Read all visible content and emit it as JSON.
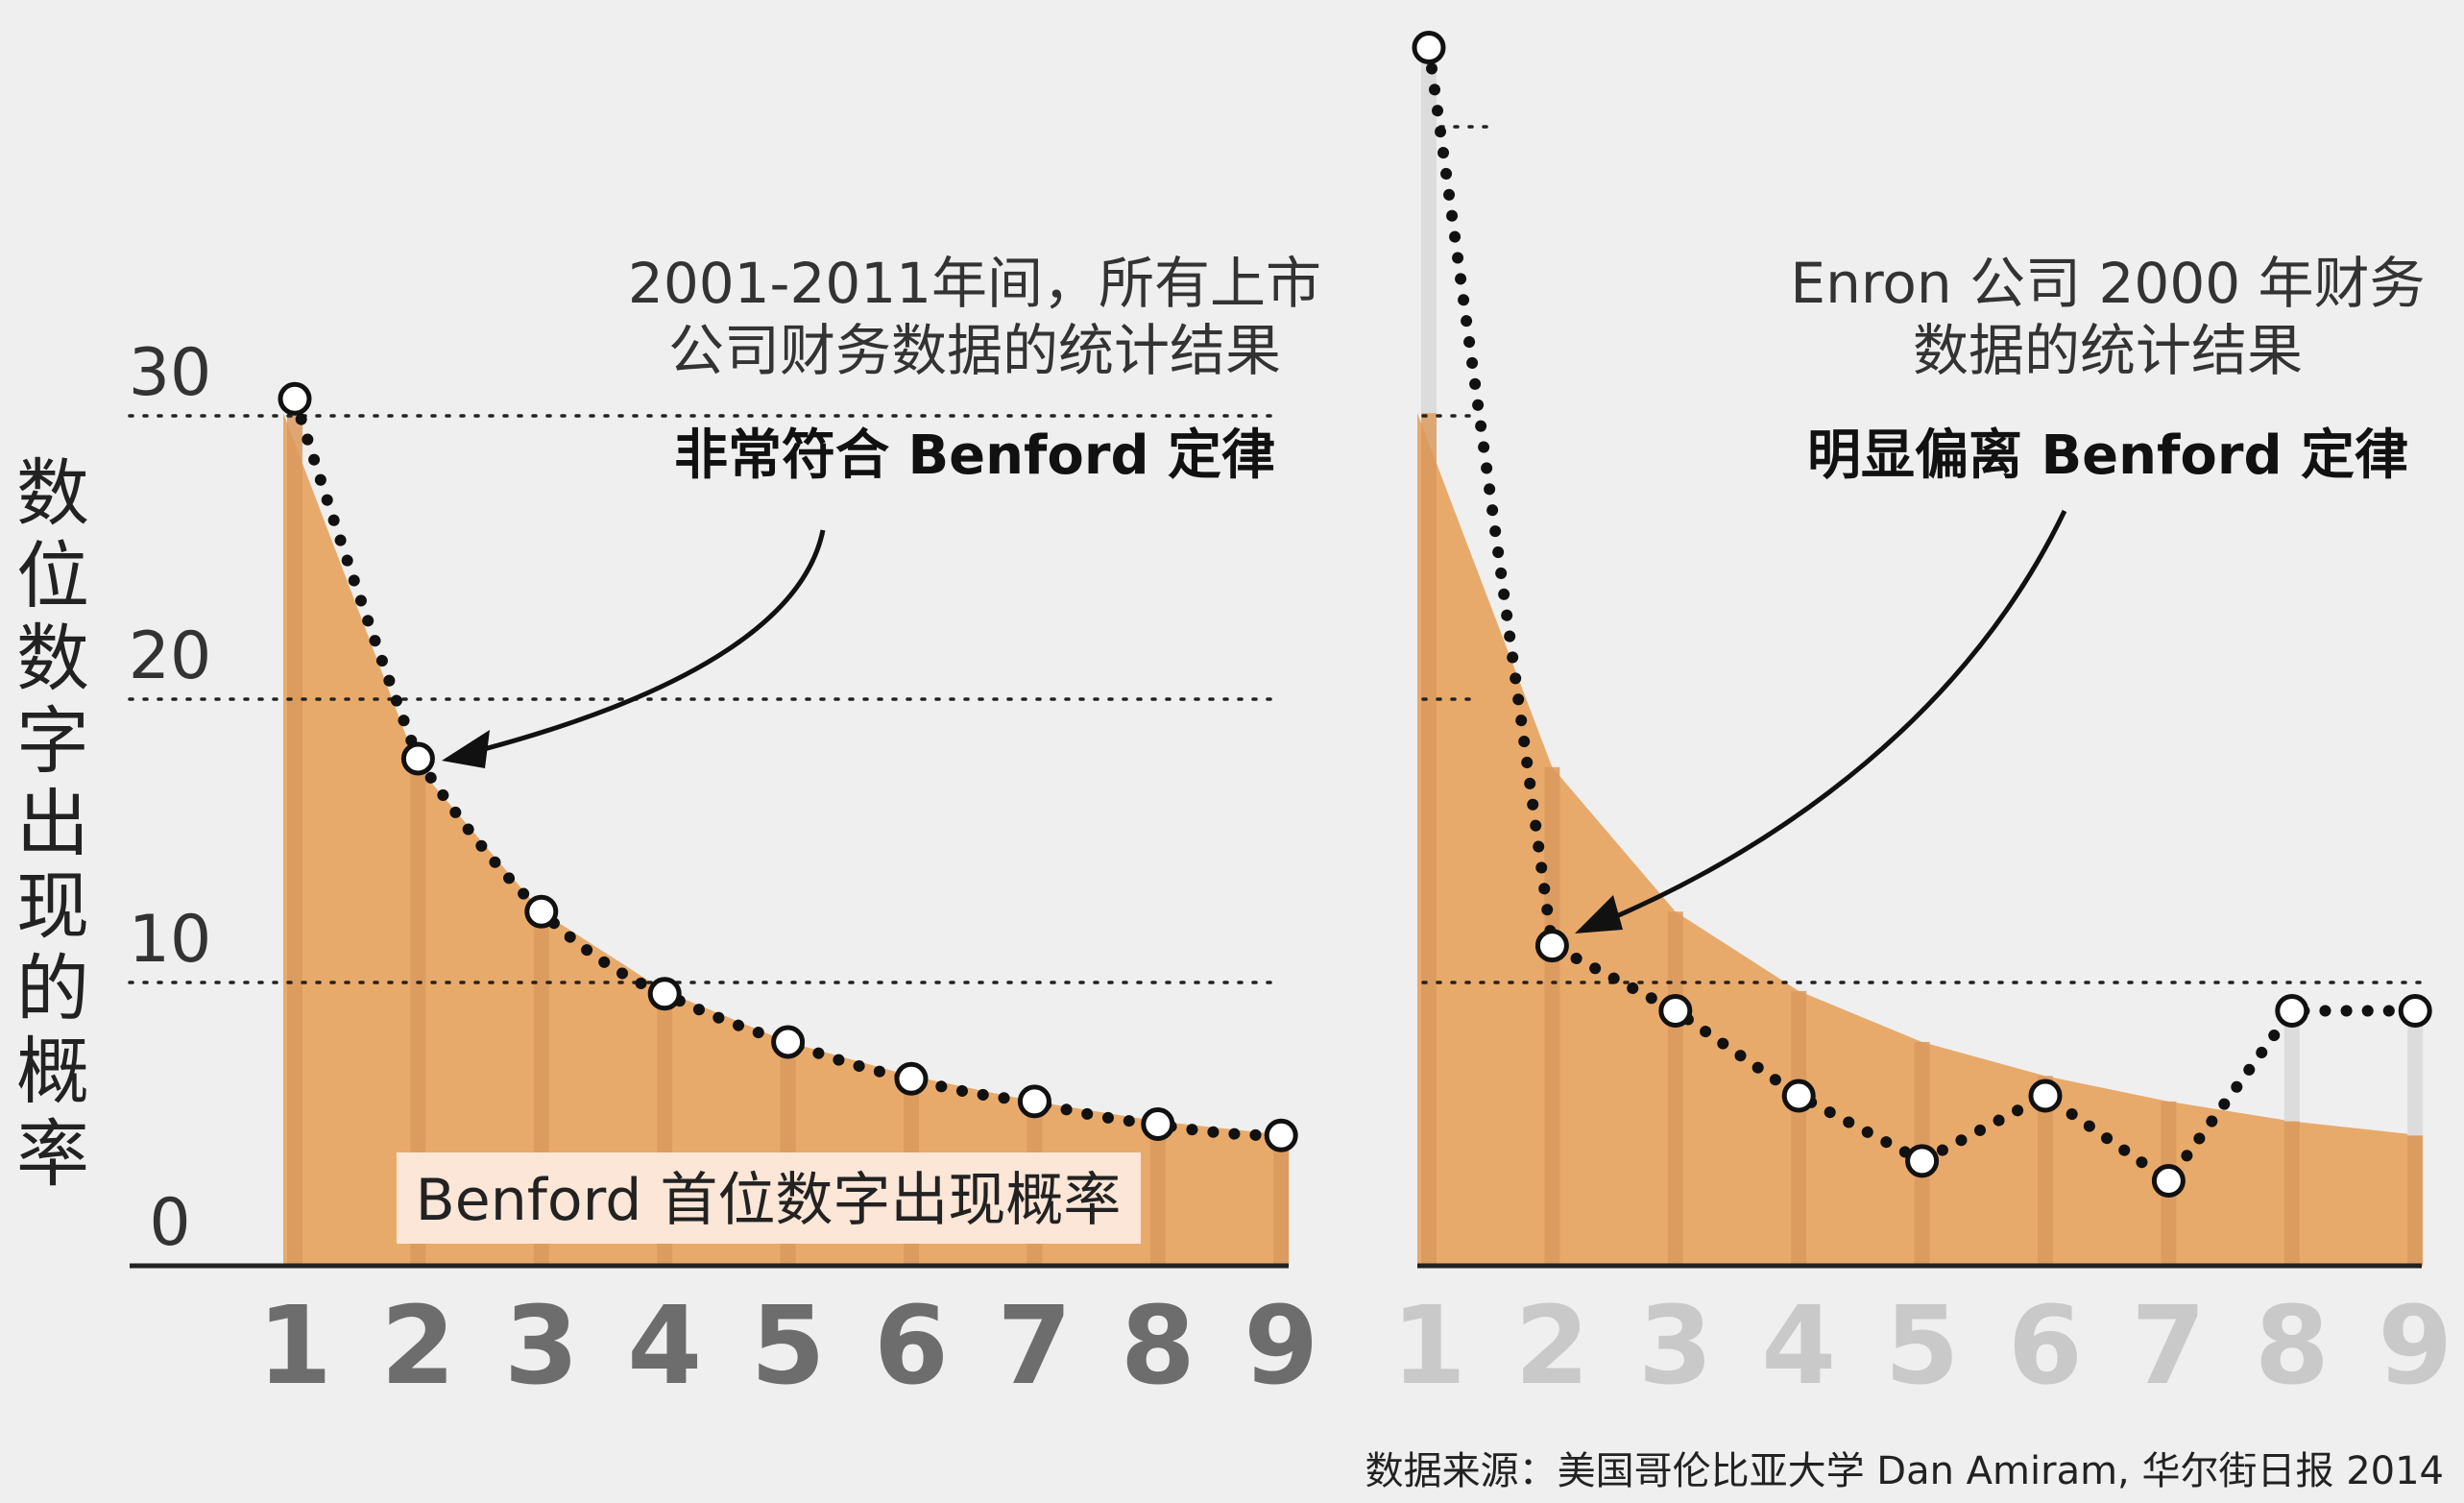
{
  "y_axis_label": "数位数字出现的概率",
  "y_ticks": [
    "30",
    "20",
    "10",
    "0"
  ],
  "legend_label": "Benford 首位数字出现概率",
  "source": "数据来源：美国哥伦比亚大学 Dan Amiram, 华尔街日报 2014",
  "colors": {
    "area": "#e8aa6b",
    "stripe": "#d99a5e",
    "dots": "#111111",
    "marker_fill": "#ffffff",
    "gridline": "#222222",
    "category_left": "#6d6d6d",
    "category_right": "#c9c9c9",
    "legend_box": "#fbe6d7"
  },
  "chart_data": [
    {
      "type": "area",
      "categories": [
        "1",
        "2",
        "3",
        "4",
        "5",
        "6",
        "7",
        "8",
        "9"
      ],
      "ylim": [
        0,
        30
      ],
      "grid": "dotted lines at 10, 20, 30",
      "series": [
        {
          "name": "Benford 首位数字出现概率",
          "values": [
            30.1,
            17.6,
            12.5,
            9.7,
            7.9,
            6.7,
            5.8,
            5.1,
            4.6
          ]
        },
        {
          "values": [
            30.6,
            17.9,
            12.5,
            9.6,
            7.9,
            6.6,
            5.8,
            5.0,
            4.6
          ]
        }
      ],
      "annotation": {
        "line1": "2001-2011年间，所有上市",
        "line2": "公司财务数据的统计结果",
        "bold": "非常符合 Benford 定律"
      }
    },
    {
      "type": "area",
      "categories": [
        "1",
        "2",
        "3",
        "4",
        "5",
        "6",
        "7",
        "8",
        "9"
      ],
      "ylim": [
        0,
        30
      ],
      "grid": "dotted lines at 10, 20, 30",
      "series": [
        {
          "name": "Benford 首位数字出现概率",
          "values": [
            30.1,
            17.6,
            12.5,
            9.7,
            7.9,
            6.7,
            5.8,
            5.1,
            4.6
          ]
        },
        {
          "values": [
            43.0,
            11.3,
            9.0,
            6.0,
            3.7,
            6.0,
            3.0,
            9.0,
            9.0
          ]
        }
      ],
      "annotation": {
        "line1": "Enron 公司 2000 年财务",
        "line2": "数据的统计结果",
        "bold": "明显偏离 Benford 定律"
      }
    }
  ]
}
